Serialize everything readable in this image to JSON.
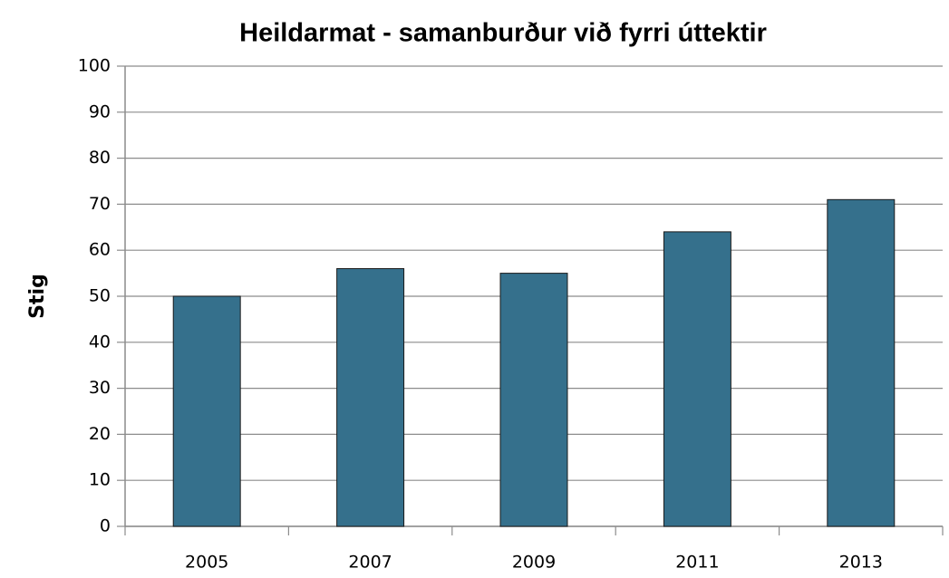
{
  "chart_data": {
    "type": "bar",
    "title": "Heildarmat - samanburður við fyrri  úttektir",
    "y_label": "Stig",
    "categories": [
      "2005",
      "2007",
      "2009",
      "2011",
      "2013"
    ],
    "values": [
      50,
      56,
      55,
      64,
      71
    ],
    "color": "#35708c",
    "ylim": [
      0,
      100
    ],
    "yticks": [
      0,
      10,
      20,
      30,
      40,
      50,
      60,
      70,
      80,
      90,
      100
    ],
    "grid": true
  }
}
